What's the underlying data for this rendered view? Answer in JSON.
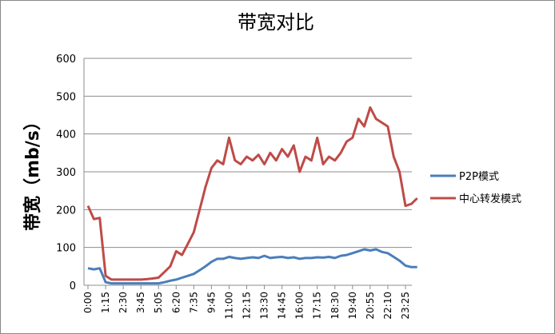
{
  "chart_data": {
    "type": "line",
    "title": "带宽对比",
    "y_label": "带宽（mb/s）",
    "categories": [
      "0:00",
      null,
      null,
      "1:15",
      null,
      null,
      "2:30",
      null,
      null,
      "3:45",
      null,
      null,
      "5:05",
      null,
      null,
      "6:20",
      null,
      null,
      "7:35",
      null,
      null,
      "9:45",
      null,
      null,
      "11:00",
      null,
      null,
      "12:15",
      null,
      null,
      "13:30",
      null,
      null,
      "14:45",
      null,
      null,
      "16:00",
      null,
      null,
      "17:15",
      null,
      null,
      "18:30",
      null,
      null,
      "19:40",
      null,
      null,
      "20:55",
      null,
      null,
      "22:10",
      null,
      null,
      "23:25",
      null,
      null
    ],
    "series": [
      {
        "name": "P2P模式",
        "color": "#4a7ebb",
        "values": [
          45,
          42,
          45,
          8,
          5,
          5,
          5,
          5,
          5,
          5,
          5,
          5,
          5,
          8,
          12,
          15,
          20,
          25,
          30,
          40,
          50,
          62,
          70,
          70,
          75,
          72,
          70,
          72,
          74,
          72,
          78,
          72,
          74,
          75,
          72,
          74,
          70,
          72,
          72,
          74,
          73,
          75,
          72,
          78,
          80,
          85,
          90,
          95,
          92,
          95,
          88,
          85,
          75,
          65,
          52,
          48,
          48
        ]
      },
      {
        "name": "中心转发模式",
        "color": "#be4b48",
        "values": [
          210,
          175,
          178,
          25,
          15,
          15,
          15,
          15,
          15,
          15,
          16,
          18,
          20,
          35,
          50,
          90,
          80,
          110,
          140,
          200,
          260,
          310,
          330,
          320,
          390,
          330,
          320,
          340,
          330,
          345,
          320,
          350,
          330,
          360,
          340,
          370,
          300,
          340,
          330,
          390,
          320,
          340,
          330,
          350,
          380,
          390,
          440,
          420,
          470,
          440,
          430,
          420,
          340,
          300,
          210,
          215,
          230
        ]
      }
    ],
    "ylim": [
      0,
      600
    ],
    "yticks": [
      0,
      100,
      200,
      300,
      400,
      500,
      600
    ],
    "grid": true,
    "legend": "right"
  }
}
